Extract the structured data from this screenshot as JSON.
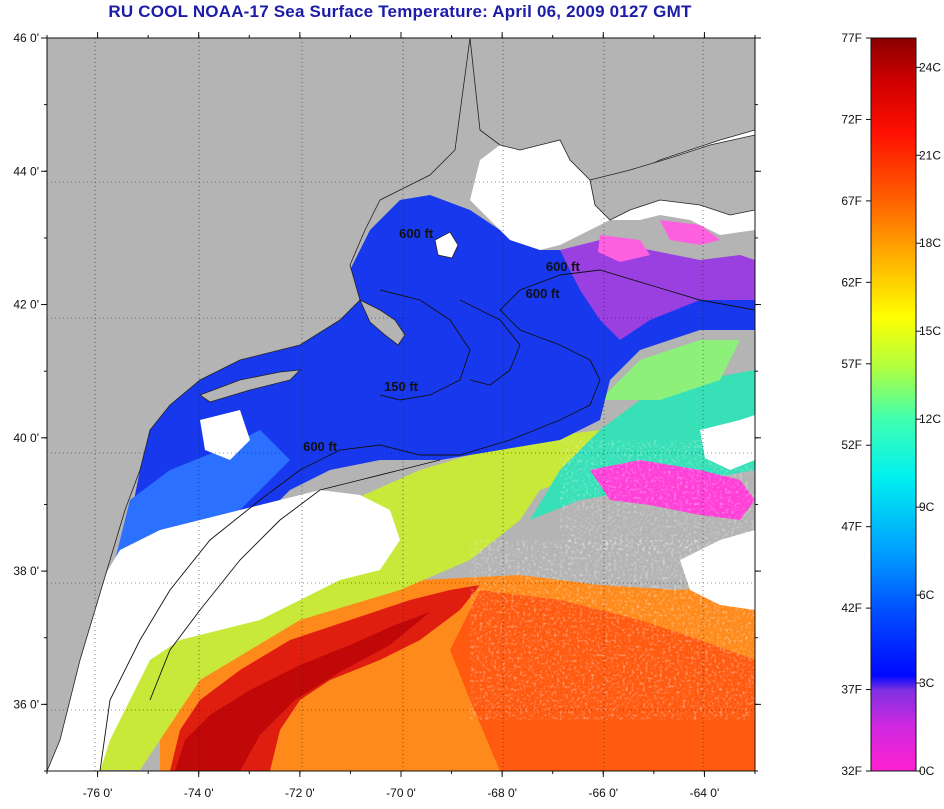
{
  "title": "RU COOL  NOAA-17  Sea Surface Temperature:  April 06, 2009 0127 GMT",
  "map": {
    "lon_range": [
      -77,
      -63
    ],
    "lat_range": [
      35,
      46
    ],
    "lat_ticks": [
      {
        "value": 46,
        "label": "46 0'"
      },
      {
        "value": 44,
        "label": "44 0'"
      },
      {
        "value": 42,
        "label": "42 0'"
      },
      {
        "value": 40,
        "label": "40 0'"
      },
      {
        "value": 38,
        "label": "38 0'"
      },
      {
        "value": 36,
        "label": "36 0'"
      }
    ],
    "lon_ticks": [
      {
        "value": -76,
        "label": "-76 0'"
      },
      {
        "value": -74,
        "label": "-74 0'"
      },
      {
        "value": -72,
        "label": "-72 0'"
      },
      {
        "value": -70,
        "label": "-70 0'"
      },
      {
        "value": -68,
        "label": "-68 0'"
      },
      {
        "value": -66,
        "label": "-66 0'"
      },
      {
        "value": -64,
        "label": "-64 0'"
      }
    ],
    "contour_labels": [
      {
        "text": "600 ft",
        "lon": -69.7,
        "lat": 43.0
      },
      {
        "text": "600 ft",
        "lon": -66.8,
        "lat": 42.5
      },
      {
        "text": "600 ft",
        "lon": -67.2,
        "lat": 42.1
      },
      {
        "text": "150 ft",
        "lon": -70.0,
        "lat": 40.7
      },
      {
        "text": "600 ft",
        "lon": -71.6,
        "lat": 39.8
      }
    ],
    "colors": {
      "land": "#b4b4b4",
      "cloud": "#ffffff",
      "water_cold": "#1a3cf0",
      "water_warm": "#e02010"
    }
  },
  "colorbar": {
    "fahrenheit_labels": [
      "77F",
      "72F",
      "67F",
      "62F",
      "57F",
      "52F",
      "47F",
      "42F",
      "37F",
      "32F"
    ],
    "celsius_labels": [
      "24C",
      "21C",
      "18C",
      "15C",
      "12C",
      "9C",
      "6C",
      "3C",
      "0C"
    ],
    "stops": [
      "#ff20d0",
      "#a030e0",
      "#0010ff",
      "#0060ff",
      "#00d8ff",
      "#60ffc0",
      "#c0ff40",
      "#ffff00",
      "#ffb000",
      "#ff5000",
      "#ff0000",
      "#a00000"
    ]
  }
}
